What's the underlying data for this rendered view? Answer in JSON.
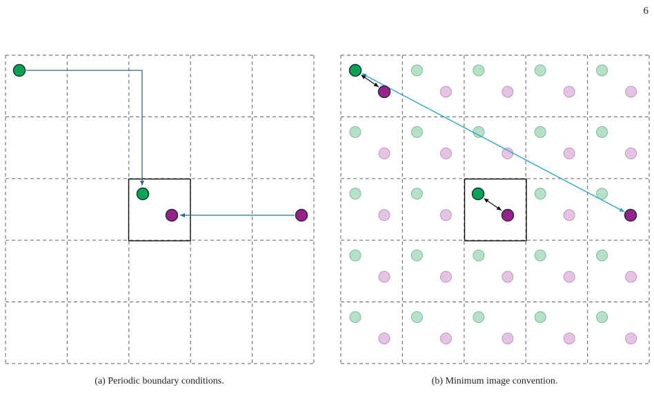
{
  "page_number": "6",
  "figures": [
    {
      "caption": "(a) Periodic boundary conditions."
    },
    {
      "caption": "(b) Minimum image convention."
    }
  ]
}
